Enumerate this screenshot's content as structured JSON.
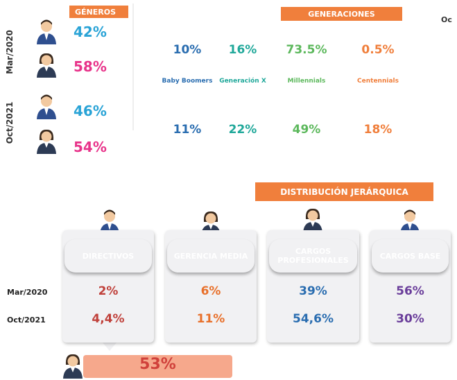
{
  "genders": {
    "title": "GÉNEROS",
    "periods": [
      {
        "label": "Mar/2020",
        "men": "42%",
        "women": "58%"
      },
      {
        "label": "Oct/2021",
        "men": "46%",
        "women": "54%"
      }
    ]
  },
  "generations": {
    "title": "GENERACIONES",
    "groups": [
      "Baby Boomers",
      "Generación X",
      "Millennials",
      "Centennials"
    ],
    "mar2020": [
      "10%",
      "16%",
      "73.5%",
      "0.5%"
    ],
    "oct2021": [
      "11%",
      "22%",
      "49%",
      "18%"
    ]
  },
  "cut_text": "Oc",
  "hierarchy": {
    "title": "DISTRIBUCIÓN JERÁRQUICA",
    "row_labels": [
      "Mar/2020",
      "Oct/2021"
    ],
    "levels": [
      {
        "name": "DIRECTIVOS",
        "values": [
          "2%",
          "4,4%"
        ]
      },
      {
        "name": "GERENCIA MEDIA",
        "values": [
          "6%",
          "11%"
        ]
      },
      {
        "name": "CARGOS PROFESIONALES",
        "values": [
          "39%",
          "54,6%"
        ]
      },
      {
        "name": "CARGOS BASE",
        "values": [
          "56%",
          "30%"
        ]
      }
    ],
    "women_directives": "53%"
  }
}
